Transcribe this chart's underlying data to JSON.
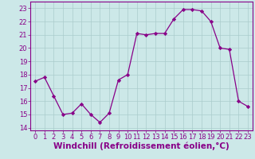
{
  "x": [
    0,
    1,
    2,
    3,
    4,
    5,
    6,
    7,
    8,
    9,
    10,
    11,
    12,
    13,
    14,
    15,
    16,
    17,
    18,
    19,
    20,
    21,
    22,
    23
  ],
  "y": [
    17.5,
    17.8,
    16.4,
    15.0,
    15.1,
    15.8,
    15.0,
    14.4,
    15.1,
    17.6,
    18.0,
    21.1,
    21.0,
    21.1,
    21.1,
    22.2,
    22.9,
    22.9,
    22.8,
    22.0,
    20.0,
    19.9,
    16.0,
    15.6
  ],
  "line_color": "#880088",
  "marker": "D",
  "marker_size": 2.2,
  "bg_color": "#cce8e8",
  "grid_color": "#aacccc",
  "xlabel": "Windchill (Refroidissement éolien,°C)",
  "xlabel_color": "#880088",
  "xlim": [
    -0.5,
    23.5
  ],
  "ylim": [
    13.8,
    23.5
  ],
  "yticks": [
    14,
    15,
    16,
    17,
    18,
    19,
    20,
    21,
    22,
    23
  ],
  "xticks": [
    0,
    1,
    2,
    3,
    4,
    5,
    6,
    7,
    8,
    9,
    10,
    11,
    12,
    13,
    14,
    15,
    16,
    17,
    18,
    19,
    20,
    21,
    22,
    23
  ],
  "tick_labelsize": 6.0,
  "xlabel_fontsize": 7.5
}
